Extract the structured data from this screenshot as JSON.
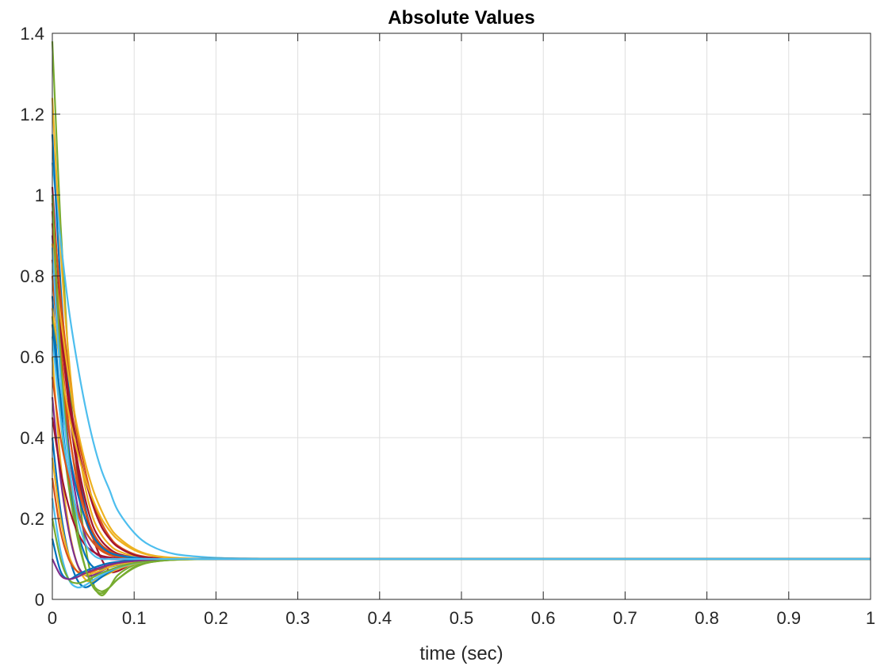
{
  "chart_data": {
    "type": "line",
    "title": "Absolute Values",
    "xlabel": "time (sec)",
    "ylabel": "",
    "xlim": [
      0,
      1
    ],
    "ylim": [
      0,
      1.4
    ],
    "grid": true,
    "legend": "none",
    "x_ticks": [
      "0",
      "0.1",
      "0.2",
      "0.3",
      "0.4",
      "0.5",
      "0.6",
      "0.7",
      "0.8",
      "0.9",
      "1"
    ],
    "y_ticks": [
      "0",
      "0.2",
      "0.4",
      "0.6",
      "0.8",
      "1",
      "1.2",
      "1.4"
    ],
    "steady_state": 0.1,
    "palette": [
      "#0072BD",
      "#D95319",
      "#EDB120",
      "#7E2F8E",
      "#77AC30",
      "#4DBEEE",
      "#A2142F"
    ],
    "x": [
      0,
      0.01,
      0.02,
      0.03,
      0.04,
      0.05,
      0.06,
      0.07,
      0.08,
      0.1,
      0.12,
      0.15,
      0.2,
      0.25,
      0.3,
      0.4,
      0.5,
      0.6,
      0.7,
      0.8,
      0.9,
      1.0
    ],
    "series": [
      {
        "color": "#77AC30",
        "values": [
          1.38,
          0.93,
          0.58,
          0.32,
          0.14,
          0.04,
          0.01,
          0.03,
          0.06,
          0.085,
          0.094,
          0.098,
          0.1,
          0.1,
          0.1,
          0.1,
          0.1,
          0.1,
          0.1,
          0.1,
          0.1,
          0.1
        ]
      },
      {
        "color": "#EDB120",
        "values": [
          1.24,
          0.87,
          0.6,
          0.41,
          0.28,
          0.2,
          0.16,
          0.135,
          0.12,
          0.107,
          0.103,
          0.101,
          0.1,
          0.1,
          0.1,
          0.1,
          0.1,
          0.1,
          0.1,
          0.1,
          0.1,
          0.1
        ]
      },
      {
        "color": "#4DBEEE",
        "values": [
          1.08,
          0.89,
          0.72,
          0.59,
          0.48,
          0.39,
          0.32,
          0.27,
          0.22,
          0.165,
          0.133,
          0.112,
          0.103,
          0.101,
          0.1,
          0.1,
          0.1,
          0.1,
          0.1,
          0.1,
          0.1,
          0.1
        ]
      },
      {
        "color": "#0072BD",
        "values": [
          1.15,
          0.78,
          0.52,
          0.34,
          0.23,
          0.16,
          0.13,
          0.115,
          0.108,
          0.102,
          0.1,
          0.1,
          0.1,
          0.1,
          0.1,
          0.1,
          0.1,
          0.1,
          0.1,
          0.1,
          0.1,
          0.1
        ]
      },
      {
        "color": "#A2142F",
        "values": [
          1.02,
          0.72,
          0.5,
          0.35,
          0.25,
          0.18,
          0.145,
          0.125,
          0.113,
          0.104,
          0.101,
          0.1,
          0.1,
          0.1,
          0.1,
          0.1,
          0.1,
          0.1,
          0.1,
          0.1,
          0.1,
          0.1
        ]
      },
      {
        "color": "#D95319",
        "values": [
          0.98,
          0.75,
          0.56,
          0.42,
          0.32,
          0.24,
          0.19,
          0.155,
          0.133,
          0.112,
          0.104,
          0.101,
          0.1,
          0.1,
          0.1,
          0.1,
          0.1,
          0.1,
          0.1,
          0.1,
          0.1,
          0.1
        ]
      },
      {
        "color": "#7E2F8E",
        "values": [
          0.9,
          0.6,
          0.38,
          0.24,
          0.16,
          0.12,
          0.105,
          0.1,
          0.099,
          0.099,
          0.1,
          0.1,
          0.1,
          0.1,
          0.1,
          0.1,
          0.1,
          0.1,
          0.1,
          0.1,
          0.1,
          0.1
        ]
      },
      {
        "color": "#A2142F",
        "values": [
          0.93,
          0.68,
          0.48,
          0.33,
          0.22,
          0.15,
          0.1,
          0.07,
          0.07,
          0.09,
          0.097,
          0.1,
          0.1,
          0.1,
          0.1,
          0.1,
          0.1,
          0.1,
          0.1,
          0.1,
          0.1,
          0.1
        ]
      },
      {
        "color": "#EDB120",
        "values": [
          0.88,
          0.7,
          0.55,
          0.43,
          0.34,
          0.27,
          0.22,
          0.18,
          0.155,
          0.125,
          0.11,
          0.103,
          0.1,
          0.1,
          0.1,
          0.1,
          0.1,
          0.1,
          0.1,
          0.1,
          0.1,
          0.1
        ]
      },
      {
        "color": "#D95319",
        "values": [
          0.8,
          0.58,
          0.42,
          0.3,
          0.22,
          0.165,
          0.135,
          0.12,
          0.11,
          0.103,
          0.101,
          0.1,
          0.1,
          0.1,
          0.1,
          0.1,
          0.1,
          0.1,
          0.1,
          0.1,
          0.1,
          0.1
        ]
      },
      {
        "color": "#0072BD",
        "values": [
          0.75,
          0.48,
          0.3,
          0.18,
          0.11,
          0.08,
          0.075,
          0.08,
          0.085,
          0.093,
          0.097,
          0.099,
          0.1,
          0.1,
          0.1,
          0.1,
          0.1,
          0.1,
          0.1,
          0.1,
          0.1,
          0.1
        ]
      },
      {
        "color": "#77AC30",
        "values": [
          0.7,
          0.45,
          0.28,
          0.16,
          0.08,
          0.035,
          0.02,
          0.03,
          0.05,
          0.08,
          0.092,
          0.098,
          0.1,
          0.1,
          0.1,
          0.1,
          0.1,
          0.1,
          0.1,
          0.1,
          0.1,
          0.1
        ]
      },
      {
        "color": "#4DBEEE",
        "values": [
          0.65,
          0.45,
          0.31,
          0.22,
          0.17,
          0.14,
          0.125,
          0.115,
          0.109,
          0.104,
          0.101,
          0.1,
          0.1,
          0.1,
          0.1,
          0.1,
          0.1,
          0.1,
          0.1,
          0.1,
          0.1,
          0.1
        ]
      },
      {
        "color": "#EDB120",
        "values": [
          0.6,
          0.34,
          0.18,
          0.09,
          0.05,
          0.045,
          0.055,
          0.065,
          0.075,
          0.088,
          0.095,
          0.098,
          0.1,
          0.1,
          0.1,
          0.1,
          0.1,
          0.1,
          0.1,
          0.1,
          0.1,
          0.1
        ]
      },
      {
        "color": "#D95319",
        "values": [
          0.55,
          0.4,
          0.3,
          0.22,
          0.17,
          0.14,
          0.12,
          0.11,
          0.106,
          0.102,
          0.1,
          0.1,
          0.1,
          0.1,
          0.1,
          0.1,
          0.1,
          0.1,
          0.1,
          0.1,
          0.1,
          0.1
        ]
      },
      {
        "color": "#7E2F8E",
        "values": [
          0.5,
          0.3,
          0.17,
          0.09,
          0.06,
          0.06,
          0.07,
          0.08,
          0.087,
          0.094,
          0.098,
          0.1,
          0.1,
          0.1,
          0.1,
          0.1,
          0.1,
          0.1,
          0.1,
          0.1,
          0.1,
          0.1
        ]
      },
      {
        "color": "#A2142F",
        "values": [
          0.45,
          0.32,
          0.23,
          0.17,
          0.135,
          0.118,
          0.108,
          0.104,
          0.102,
          0.1,
          0.1,
          0.1,
          0.1,
          0.1,
          0.1,
          0.1,
          0.1,
          0.1,
          0.1,
          0.1,
          0.1,
          0.1
        ]
      },
      {
        "color": "#0072BD",
        "values": [
          0.4,
          0.22,
          0.11,
          0.05,
          0.03,
          0.04,
          0.055,
          0.068,
          0.078,
          0.09,
          0.096,
          0.099,
          0.1,
          0.1,
          0.1,
          0.1,
          0.1,
          0.1,
          0.1,
          0.1,
          0.1,
          0.1
        ]
      },
      {
        "color": "#EDB120",
        "values": [
          0.35,
          0.2,
          0.11,
          0.07,
          0.06,
          0.065,
          0.072,
          0.08,
          0.086,
          0.093,
          0.097,
          0.099,
          0.1,
          0.1,
          0.1,
          0.1,
          0.1,
          0.1,
          0.1,
          0.1,
          0.1,
          0.1
        ]
      },
      {
        "color": "#D95319",
        "values": [
          0.3,
          0.17,
          0.1,
          0.07,
          0.065,
          0.07,
          0.078,
          0.085,
          0.09,
          0.095,
          0.098,
          0.1,
          0.1,
          0.1,
          0.1,
          0.1,
          0.1,
          0.1,
          0.1,
          0.1,
          0.1,
          0.1
        ]
      },
      {
        "color": "#4DBEEE",
        "values": [
          0.25,
          0.12,
          0.05,
          0.03,
          0.035,
          0.048,
          0.06,
          0.07,
          0.078,
          0.089,
          0.095,
          0.099,
          0.1,
          0.1,
          0.1,
          0.1,
          0.1,
          0.1,
          0.1,
          0.1,
          0.1,
          0.1
        ]
      },
      {
        "color": "#77AC30",
        "values": [
          0.2,
          0.1,
          0.05,
          0.04,
          0.045,
          0.055,
          0.065,
          0.073,
          0.08,
          0.09,
          0.095,
          0.099,
          0.1,
          0.1,
          0.1,
          0.1,
          0.1,
          0.1,
          0.1,
          0.1,
          0.1,
          0.1
        ]
      },
      {
        "color": "#0072BD",
        "values": [
          0.15,
          0.07,
          0.05,
          0.06,
          0.07,
          0.078,
          0.085,
          0.09,
          0.093,
          0.097,
          0.099,
          0.1,
          0.1,
          0.1,
          0.1,
          0.1,
          0.1,
          0.1,
          0.1,
          0.1,
          0.1,
          0.1
        ]
      },
      {
        "color": "#7E2F8E",
        "values": [
          0.1,
          0.06,
          0.05,
          0.055,
          0.065,
          0.073,
          0.08,
          0.086,
          0.09,
          0.095,
          0.098,
          0.1,
          0.1,
          0.1,
          0.1,
          0.1,
          0.1,
          0.1,
          0.1,
          0.1,
          0.1,
          0.1
        ]
      },
      {
        "color": "#D95319",
        "values": [
          0.96,
          0.64,
          0.43,
          0.29,
          0.2,
          0.15,
          0.125,
          0.112,
          0.106,
          0.101,
          0.1,
          0.1,
          0.1,
          0.1,
          0.1,
          0.1,
          0.1,
          0.1,
          0.1,
          0.1,
          0.1,
          0.1
        ]
      },
      {
        "color": "#A2142F",
        "values": [
          0.84,
          0.66,
          0.51,
          0.39,
          0.3,
          0.23,
          0.18,
          0.15,
          0.13,
          0.11,
          0.103,
          0.1,
          0.1,
          0.1,
          0.1,
          0.1,
          0.1,
          0.1,
          0.1,
          0.1,
          0.1,
          0.1
        ]
      },
      {
        "color": "#EDB120",
        "values": [
          0.72,
          0.58,
          0.46,
          0.37,
          0.3,
          0.245,
          0.2,
          0.17,
          0.148,
          0.122,
          0.109,
          0.102,
          0.1,
          0.1,
          0.1,
          0.1,
          0.1,
          0.1,
          0.1,
          0.1,
          0.1,
          0.1
        ]
      },
      {
        "color": "#0072BD",
        "values": [
          0.68,
          0.5,
          0.37,
          0.27,
          0.2,
          0.155,
          0.13,
          0.116,
          0.109,
          0.103,
          0.1,
          0.1,
          0.1,
          0.1,
          0.1,
          0.1,
          0.1,
          0.1,
          0.1,
          0.1,
          0.1,
          0.1
        ]
      },
      {
        "color": "#77AC30",
        "values": [
          1.0,
          0.6,
          0.35,
          0.18,
          0.08,
          0.03,
          0.015,
          0.03,
          0.05,
          0.078,
          0.092,
          0.098,
          0.1,
          0.1,
          0.1,
          0.1,
          0.1,
          0.1,
          0.1,
          0.1,
          0.1,
          0.1
        ]
      },
      {
        "color": "#4DBEEE",
        "values": [
          0.87,
          0.55,
          0.34,
          0.21,
          0.14,
          0.11,
          0.1,
          0.1,
          0.1,
          0.1,
          0.1,
          0.1,
          0.1,
          0.1,
          0.1,
          0.1,
          0.1,
          0.1,
          0.1,
          0.1,
          0.1,
          0.1
        ]
      }
    ]
  }
}
